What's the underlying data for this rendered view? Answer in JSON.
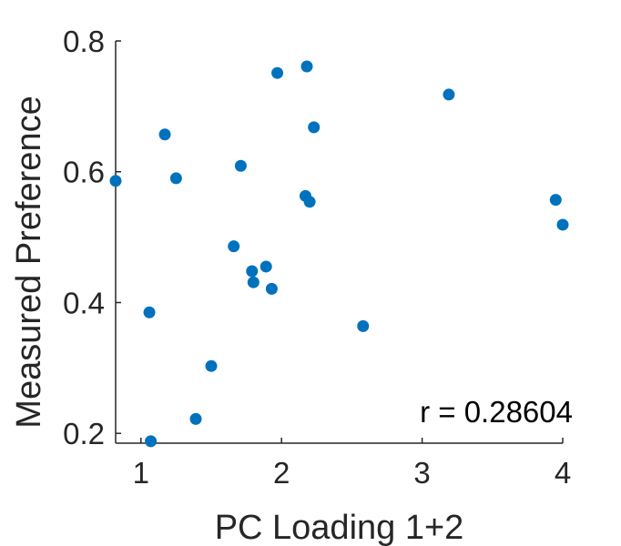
{
  "chart_data": {
    "type": "scatter",
    "title": "",
    "xlabel": "PC Loading 1+2",
    "ylabel": "Measured Preference",
    "xlim": [
      0.82,
      4.0
    ],
    "ylim": [
      0.185,
      0.8
    ],
    "xticks": [
      1,
      2,
      3,
      4
    ],
    "yticks": [
      0.2,
      0.4,
      0.6,
      0.8
    ],
    "xtick_labels": [
      "1",
      "2",
      "3",
      "4"
    ],
    "ytick_labels": [
      "0.2",
      "0.4",
      "0.6",
      "0.8"
    ],
    "grid": false,
    "marker_color": "#0072BD",
    "annotation": "r = 0.28604",
    "points": [
      {
        "x": 0.82,
        "y": 0.586
      },
      {
        "x": 1.06,
        "y": 0.385
      },
      {
        "x": 1.07,
        "y": 0.188
      },
      {
        "x": 1.17,
        "y": 0.657
      },
      {
        "x": 1.25,
        "y": 0.59
      },
      {
        "x": 1.39,
        "y": 0.222
      },
      {
        "x": 1.5,
        "y": 0.303
      },
      {
        "x": 1.66,
        "y": 0.486
      },
      {
        "x": 1.71,
        "y": 0.609
      },
      {
        "x": 1.79,
        "y": 0.448
      },
      {
        "x": 1.8,
        "y": 0.431
      },
      {
        "x": 1.89,
        "y": 0.455
      },
      {
        "x": 1.93,
        "y": 0.421
      },
      {
        "x": 1.97,
        "y": 0.751
      },
      {
        "x": 2.17,
        "y": 0.563
      },
      {
        "x": 2.18,
        "y": 0.761
      },
      {
        "x": 2.2,
        "y": 0.554
      },
      {
        "x": 2.23,
        "y": 0.668
      },
      {
        "x": 2.58,
        "y": 0.364
      },
      {
        "x": 3.19,
        "y": 0.718
      },
      {
        "x": 3.95,
        "y": 0.557
      },
      {
        "x": 4.0,
        "y": 0.519
      }
    ]
  }
}
